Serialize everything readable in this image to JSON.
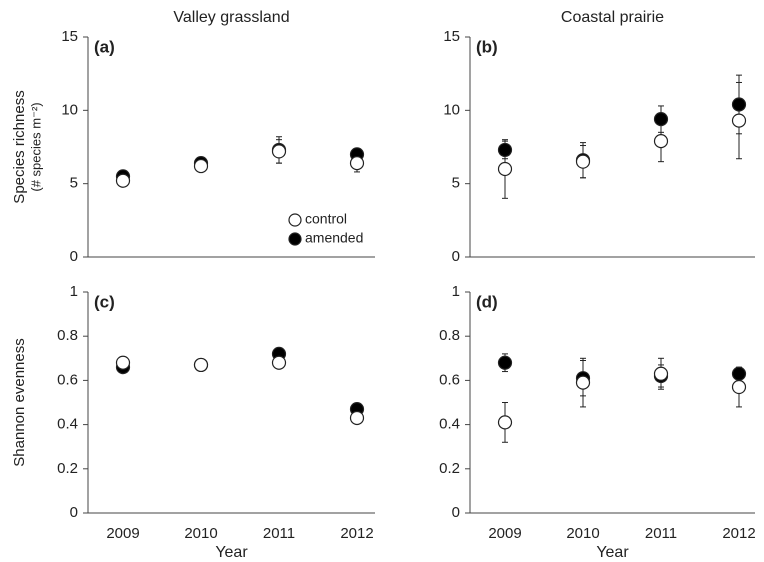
{
  "chart_data": [
    {
      "type": "scatter",
      "title": "Valley grassland",
      "panel_label": "(a)",
      "ylabel": [
        "Species richness",
        "(# species m⁻²)"
      ],
      "ylim": [
        0,
        15
      ],
      "yticks": [
        0,
        5,
        10,
        15
      ],
      "legend": "lower right",
      "series": [
        {
          "name": "control",
          "color": "#ffffff",
          "values": [
            5.2,
            6.2,
            7.2,
            6.4
          ],
          "errors": [
            0.3,
            0.3,
            0.8,
            0.6
          ]
        },
        {
          "name": "amended",
          "color": "#000000",
          "values": [
            5.5,
            6.4,
            7.3,
            7.0
          ],
          "errors": [
            0.3,
            0.3,
            0.9,
            0.3
          ]
        }
      ]
    },
    {
      "type": "scatter",
      "title": "Coastal prairie",
      "panel_label": "(b)",
      "ylim": [
        0,
        15
      ],
      "yticks": [
        0,
        5,
        10,
        15
      ],
      "series": [
        {
          "name": "control",
          "color": "#ffffff",
          "values": [
            6.0,
            6.5,
            7.9,
            9.3
          ],
          "errors": [
            2.0,
            1.1,
            1.4,
            2.6
          ]
        },
        {
          "name": "amended",
          "color": "#000000",
          "values": [
            7.3,
            6.6,
            9.4,
            10.4
          ],
          "errors": [
            0.6,
            1.2,
            0.9,
            2.0
          ]
        }
      ]
    },
    {
      "type": "scatter",
      "panel_label": "(c)",
      "ylabel": [
        "Shannon evenness"
      ],
      "xlabel": "Year",
      "categories": [
        "2009",
        "2010",
        "2011",
        "2012"
      ],
      "ylim": [
        0,
        1
      ],
      "yticks": [
        0,
        0.2,
        0.4,
        0.6,
        0.8,
        1
      ],
      "series": [
        {
          "name": "control",
          "color": "#ffffff",
          "values": [
            0.68,
            0.67,
            0.68,
            0.43
          ],
          "errors": [
            0.02,
            0.01,
            0.02,
            0.02
          ]
        },
        {
          "name": "amended",
          "color": "#000000",
          "values": [
            0.66,
            0.67,
            0.72,
            0.47
          ],
          "errors": [
            0.02,
            0.01,
            0.02,
            0.01
          ]
        }
      ]
    },
    {
      "type": "scatter",
      "panel_label": "(d)",
      "xlabel": "Year",
      "categories": [
        "2009",
        "2010",
        "2011",
        "2012"
      ],
      "ylim": [
        0,
        1
      ],
      "yticks": [
        0,
        0.2,
        0.4,
        0.6,
        0.8,
        1
      ],
      "series": [
        {
          "name": "control",
          "color": "#ffffff",
          "values": [
            0.41,
            0.59,
            0.63,
            0.57
          ],
          "errors": [
            0.09,
            0.11,
            0.07,
            0.09
          ]
        },
        {
          "name": "amended",
          "color": "#000000",
          "values": [
            0.68,
            0.61,
            0.62,
            0.63
          ],
          "errors": [
            0.04,
            0.08,
            0.05,
            0.02
          ]
        }
      ]
    }
  ]
}
